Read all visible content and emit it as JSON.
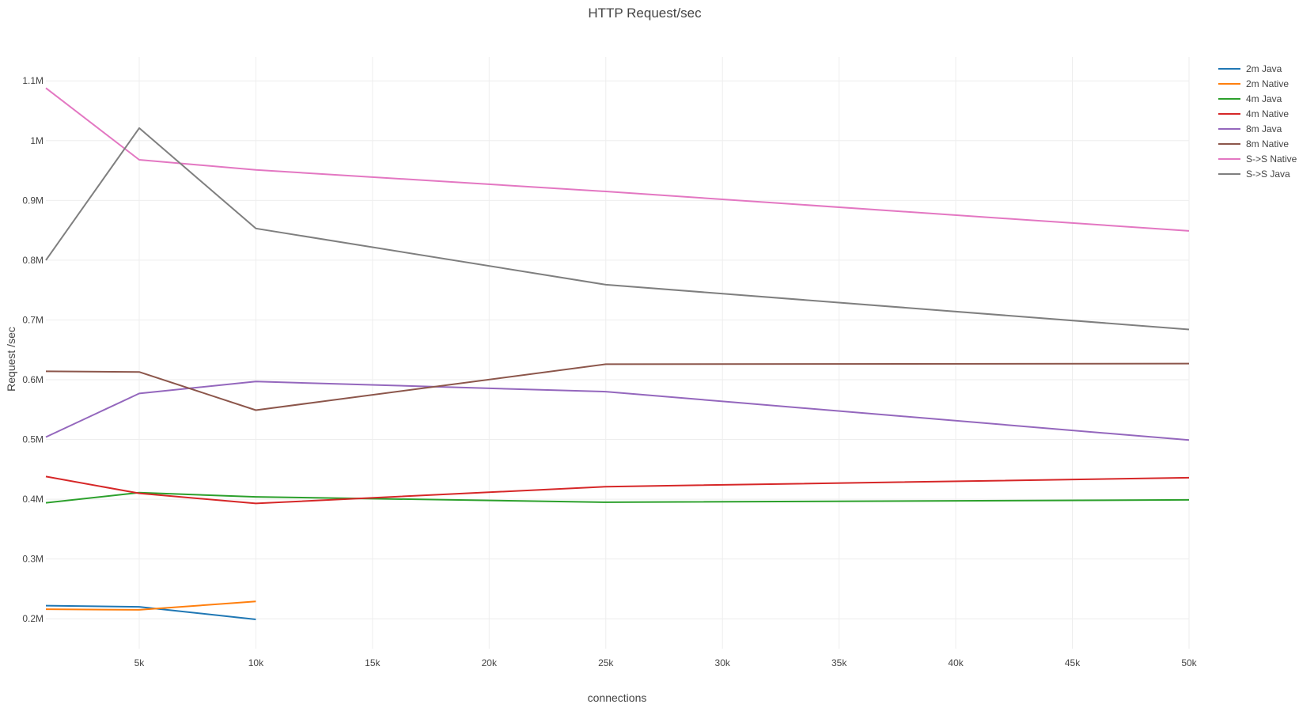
{
  "chart_data": {
    "type": "line",
    "title": "HTTP Request/sec",
    "xlabel": "connections",
    "ylabel": "Request /sec",
    "xlim": [
      1000,
      50000
    ],
    "ylim": [
      150000,
      1140000
    ],
    "x_ticks": [
      5000,
      10000,
      15000,
      20000,
      25000,
      30000,
      35000,
      40000,
      45000,
      50000
    ],
    "x_tick_labels": [
      "5k",
      "10k",
      "15k",
      "20k",
      "25k",
      "30k",
      "35k",
      "40k",
      "45k",
      "50k"
    ],
    "y_ticks": [
      200000,
      300000,
      400000,
      500000,
      600000,
      700000,
      800000,
      900000,
      1000000,
      1100000
    ],
    "y_tick_labels": [
      "0.2M",
      "0.3M",
      "0.4M",
      "0.5M",
      "0.6M",
      "0.7M",
      "0.8M",
      "0.9M",
      "1M",
      "1.1M"
    ],
    "grid": true,
    "legend_position": "top-right",
    "series": [
      {
        "name": "2m Java",
        "color": "#1f77b4",
        "x": [
          1000,
          5000,
          10000
        ],
        "y": [
          222000,
          220000,
          199000
        ]
      },
      {
        "name": "2m Native",
        "color": "#ff7f0e",
        "x": [
          1000,
          5000,
          10000
        ],
        "y": [
          216000,
          215000,
          229000
        ]
      },
      {
        "name": "4m Java",
        "color": "#2ca02c",
        "x": [
          1000,
          5000,
          10000,
          25000,
          50000
        ],
        "y": [
          394000,
          411000,
          404000,
          395000,
          399000
        ]
      },
      {
        "name": "4m Native",
        "color": "#d62728",
        "x": [
          1000,
          5000,
          10000,
          25000,
          50000
        ],
        "y": [
          438000,
          410000,
          393000,
          421000,
          436000
        ]
      },
      {
        "name": "8m Java",
        "color": "#9467bd",
        "x": [
          1000,
          5000,
          10000,
          25000,
          50000
        ],
        "y": [
          504000,
          577000,
          597000,
          580000,
          499000
        ]
      },
      {
        "name": "8m Native",
        "color": "#8c564b",
        "x": [
          1000,
          5000,
          10000,
          25000,
          50000
        ],
        "y": [
          614000,
          613000,
          549000,
          626000,
          627000
        ]
      },
      {
        "name": "S->S Native",
        "color": "#e377c2",
        "x": [
          1000,
          5000,
          10000,
          25000,
          50000
        ],
        "y": [
          1088000,
          968000,
          951000,
          915000,
          849000
        ]
      },
      {
        "name": "S->S Java",
        "color": "#7f7f7f",
        "x": [
          1000,
          5000,
          10000,
          25000,
          50000
        ],
        "y": [
          800000,
          1021000,
          853000,
          759000,
          684000
        ]
      }
    ]
  }
}
